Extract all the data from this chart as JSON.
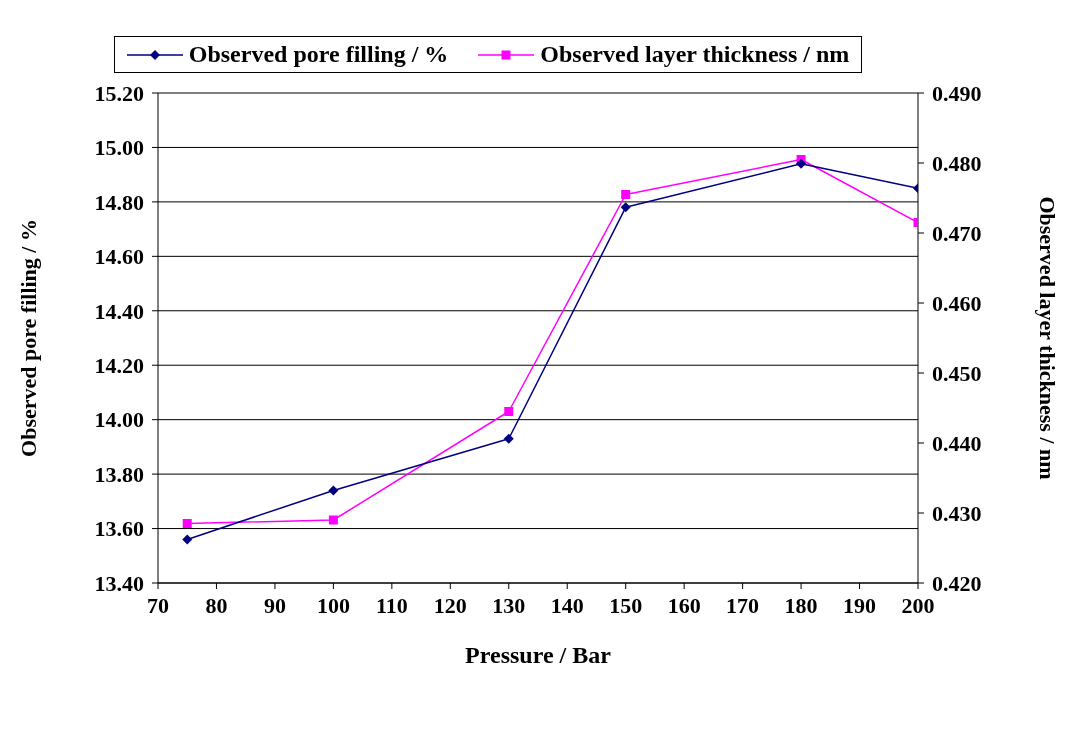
{
  "chart_data": {
    "type": "line",
    "xlabel": "Pressure / Bar",
    "ylabel": "Observed pore filling / %",
    "y2label": "Observed layer thickness / nm",
    "x": [
      75,
      100,
      130,
      150,
      180,
      200
    ],
    "series": [
      {
        "name": "Observed pore filling / %",
        "color": "#000080",
        "values": [
          13.56,
          13.74,
          13.93,
          14.78,
          14.94,
          14.85
        ],
        "marker": "diamond"
      },
      {
        "name": "Observed layer thickness / nm",
        "color": "#ff00ff",
        "values": [
          0.4285,
          0.429,
          0.4445,
          0.4755,
          0.4805,
          0.4715
        ],
        "marker": "square",
        "axis": "y2"
      }
    ],
    "xlim": [
      70,
      200
    ],
    "xticks": [
      70,
      80,
      90,
      100,
      110,
      120,
      130,
      140,
      150,
      160,
      170,
      180,
      190,
      200
    ],
    "ylim": [
      13.4,
      15.2
    ],
    "yticks": [
      {
        "value": 13.4,
        "label": "13.40"
      },
      {
        "value": 13.6,
        "label": "13.60"
      },
      {
        "value": 13.8,
        "label": "13.80"
      },
      {
        "value": 14.0,
        "label": "14.00"
      },
      {
        "value": 14.2,
        "label": "14.20"
      },
      {
        "value": 14.4,
        "label": "14.40"
      },
      {
        "value": 14.6,
        "label": "14.60"
      },
      {
        "value": 14.8,
        "label": "14.80"
      },
      {
        "value": 15.0,
        "label": "15.00"
      },
      {
        "value": 15.2,
        "label": "15.20"
      }
    ],
    "y2lim": [
      0.42,
      0.49
    ],
    "y2ticks": [
      {
        "value": 0.42,
        "label": "0.420"
      },
      {
        "value": 0.43,
        "label": "0.430"
      },
      {
        "value": 0.44,
        "label": "0.440"
      },
      {
        "value": 0.45,
        "label": "0.450"
      },
      {
        "value": 0.46,
        "label": "0.460"
      },
      {
        "value": 0.47,
        "label": "0.470"
      },
      {
        "value": 0.48,
        "label": "0.480"
      },
      {
        "value": 0.49,
        "label": "0.490"
      }
    ],
    "grid": "y",
    "legend": "top",
    "line_style": "solid"
  }
}
